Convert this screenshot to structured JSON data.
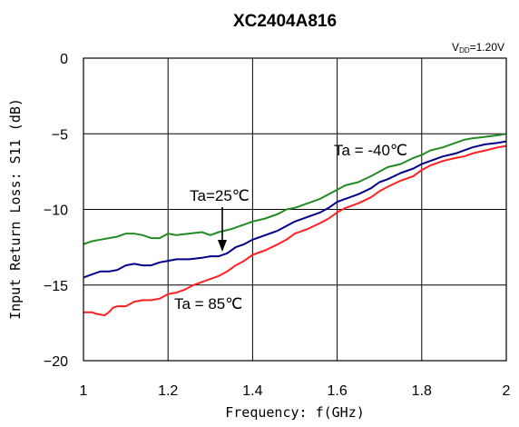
{
  "chart_data": {
    "type": "line",
    "title": "XC2404A816",
    "subtitle": "V_DD=1.20V",
    "subtitle_main": "V",
    "subtitle_sub": "DD",
    "subtitle_rest": "=1.20V",
    "xlabel": "Frequency: f(GHz)",
    "ylabel": "Input Return Loss: S11 (dB)",
    "xlim": [
      1,
      2
    ],
    "ylim": [
      -20,
      0
    ],
    "xticks": [
      1,
      1.2,
      1.4,
      1.6,
      1.8,
      2
    ],
    "xtick_labels": [
      "1",
      "1.2",
      "1.4",
      "1.6",
      "1.8",
      "2"
    ],
    "yticks": [
      0,
      -5,
      -10,
      -15,
      -20
    ],
    "ytick_labels": [
      "0",
      "−5",
      "−10",
      "−15",
      "−20"
    ],
    "grid": true,
    "legend": "none",
    "annotations": {
      "ta_m40": "Ta = -40℃",
      "ta_25": "Ta=25℃",
      "ta_85": "Ta = 85℃"
    },
    "series": [
      {
        "color": "#228B22",
        "x": [
          1.0,
          1.02,
          1.04,
          1.06,
          1.08,
          1.1,
          1.12,
          1.14,
          1.16,
          1.18,
          1.2,
          1.22,
          1.25,
          1.28,
          1.3,
          1.32,
          1.35,
          1.38,
          1.4,
          1.43,
          1.46,
          1.48,
          1.5,
          1.53,
          1.56,
          1.58,
          1.6,
          1.62,
          1.65,
          1.68,
          1.7,
          1.72,
          1.75,
          1.78,
          1.8,
          1.82,
          1.85,
          1.88,
          1.9,
          1.92,
          1.95,
          1.98,
          2.0
        ],
        "values": [
          -12.3,
          -12.1,
          -12.0,
          -11.9,
          -11.8,
          -11.6,
          -11.6,
          -11.7,
          -11.9,
          -11.9,
          -11.6,
          -11.7,
          -11.6,
          -11.5,
          -11.7,
          -11.5,
          -11.3,
          -11.0,
          -10.8,
          -10.6,
          -10.3,
          -10.0,
          -9.9,
          -9.6,
          -9.3,
          -9.0,
          -8.7,
          -8.4,
          -8.2,
          -7.8,
          -7.5,
          -7.2,
          -7.0,
          -6.6,
          -6.4,
          -6.1,
          -5.9,
          -5.6,
          -5.4,
          -5.3,
          -5.2,
          -5.1,
          -5.0
        ]
      },
      {
        "color": "#00008B",
        "x": [
          1.0,
          1.02,
          1.04,
          1.06,
          1.08,
          1.1,
          1.12,
          1.14,
          1.16,
          1.18,
          1.2,
          1.22,
          1.25,
          1.28,
          1.3,
          1.32,
          1.34,
          1.36,
          1.38,
          1.4,
          1.43,
          1.46,
          1.48,
          1.5,
          1.53,
          1.56,
          1.58,
          1.6,
          1.62,
          1.65,
          1.68,
          1.7,
          1.72,
          1.75,
          1.78,
          1.8,
          1.82,
          1.85,
          1.88,
          1.9,
          1.92,
          1.95,
          1.98,
          2.0
        ],
        "values": [
          -14.5,
          -14.3,
          -14.1,
          -14.1,
          -14.0,
          -13.7,
          -13.6,
          -13.7,
          -13.7,
          -13.5,
          -13.4,
          -13.3,
          -13.3,
          -13.2,
          -13.1,
          -13.1,
          -12.9,
          -12.5,
          -12.3,
          -12.0,
          -11.7,
          -11.4,
          -11.1,
          -10.8,
          -10.5,
          -10.2,
          -9.9,
          -9.5,
          -9.3,
          -9.0,
          -8.6,
          -8.2,
          -8.0,
          -7.6,
          -7.3,
          -7.0,
          -6.8,
          -6.5,
          -6.3,
          -6.1,
          -5.9,
          -5.7,
          -5.6,
          -5.5
        ]
      },
      {
        "color": "#FF2020",
        "x": [
          1.0,
          1.02,
          1.03,
          1.05,
          1.06,
          1.07,
          1.08,
          1.1,
          1.12,
          1.14,
          1.16,
          1.18,
          1.2,
          1.22,
          1.24,
          1.26,
          1.28,
          1.3,
          1.32,
          1.34,
          1.36,
          1.38,
          1.4,
          1.43,
          1.46,
          1.48,
          1.5,
          1.53,
          1.56,
          1.58,
          1.6,
          1.62,
          1.65,
          1.68,
          1.7,
          1.72,
          1.75,
          1.78,
          1.8,
          1.82,
          1.85,
          1.88,
          1.9,
          1.92,
          1.95,
          1.98,
          2.0
        ],
        "values": [
          -16.8,
          -16.8,
          -16.9,
          -17.0,
          -16.8,
          -16.5,
          -16.4,
          -16.4,
          -16.1,
          -16.0,
          -16.0,
          -15.9,
          -15.6,
          -15.5,
          -15.3,
          -15.0,
          -14.8,
          -14.6,
          -14.4,
          -14.1,
          -13.7,
          -13.4,
          -13.0,
          -12.7,
          -12.3,
          -12.0,
          -11.6,
          -11.3,
          -10.9,
          -10.6,
          -10.2,
          -9.9,
          -9.6,
          -9.2,
          -8.8,
          -8.5,
          -8.1,
          -7.8,
          -7.4,
          -7.1,
          -6.8,
          -6.6,
          -6.5,
          -6.3,
          -6.1,
          -5.9,
          -5.8
        ]
      }
    ]
  }
}
